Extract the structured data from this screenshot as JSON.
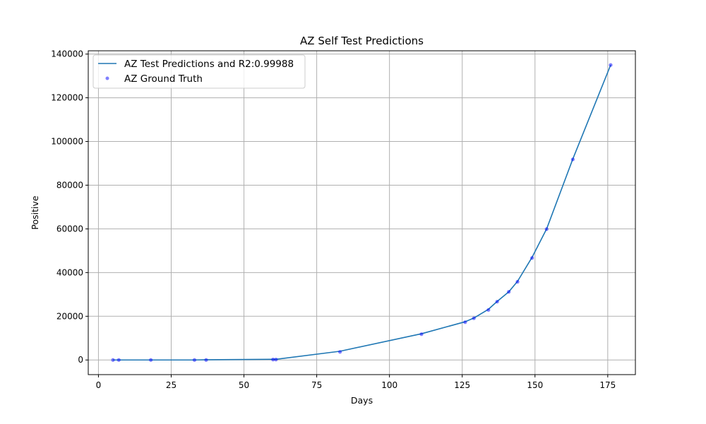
{
  "chart_data": {
    "type": "line",
    "title": "AZ Self Test Predictions",
    "xlabel": "Days",
    "ylabel": "Positive",
    "xlim": [
      -3.5,
      184.5
    ],
    "ylim": [
      -6700,
      141500
    ],
    "x_ticks": [
      0,
      25,
      50,
      75,
      100,
      125,
      150,
      175
    ],
    "y_ticks": [
      0,
      20000,
      40000,
      60000,
      80000,
      100000,
      120000,
      140000
    ],
    "grid": true,
    "legend_position": "top-left",
    "colors": {
      "line": "#1f77b4",
      "points": "#0000ff"
    },
    "series": [
      {
        "name": "AZ Test Predictions and R2:0.99988",
        "kind": "line",
        "x": [
          5,
          7,
          18,
          33,
          37,
          60,
          61,
          83,
          111,
          126,
          129,
          134,
          137,
          141,
          144,
          149,
          154,
          163,
          176
        ],
        "y": [
          0,
          0,
          0,
          0,
          100,
          300,
          300,
          4000,
          12000,
          17500,
          19200,
          23200,
          26800,
          31200,
          36000,
          47000,
          60000,
          92000,
          135000
        ]
      },
      {
        "name": "AZ Ground Truth",
        "kind": "scatter",
        "x": [
          5,
          7,
          18,
          33,
          37,
          60,
          61,
          83,
          111,
          126,
          129,
          134,
          137,
          141,
          144,
          149,
          154,
          163,
          176
        ],
        "y": [
          0,
          0,
          0,
          0,
          0,
          200,
          200,
          3700,
          11800,
          17300,
          19100,
          22900,
          26700,
          31200,
          35800,
          46700,
          59900,
          91800,
          135000
        ]
      }
    ]
  }
}
